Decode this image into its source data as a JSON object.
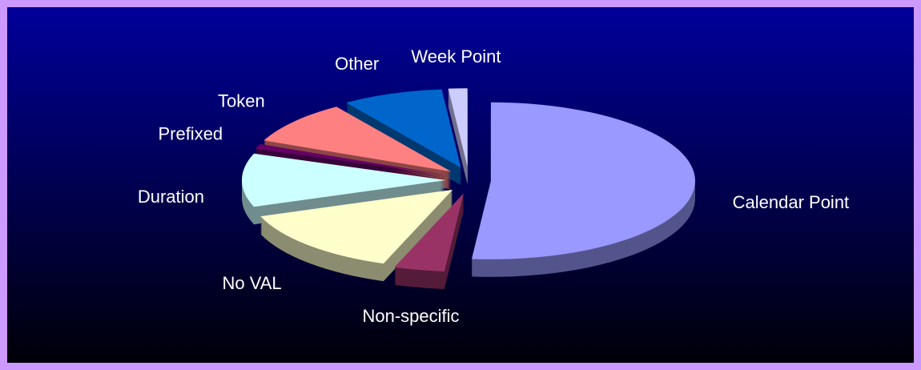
{
  "chart_data": {
    "type": "pie",
    "categories": [
      "Calendar Point",
      "Non-specific",
      "No VAL",
      "Duration",
      "Prefixed",
      "Token",
      "Other",
      "Week Point"
    ],
    "values": [
      51.5,
      4,
      14,
      11,
      1,
      9,
      8,
      1.5
    ],
    "colors": [
      "#9999ff",
      "#993366",
      "#ffffcc",
      "#ccffff",
      "#660066",
      "#ff8080",
      "#0066cc",
      "#ccccff"
    ]
  }
}
